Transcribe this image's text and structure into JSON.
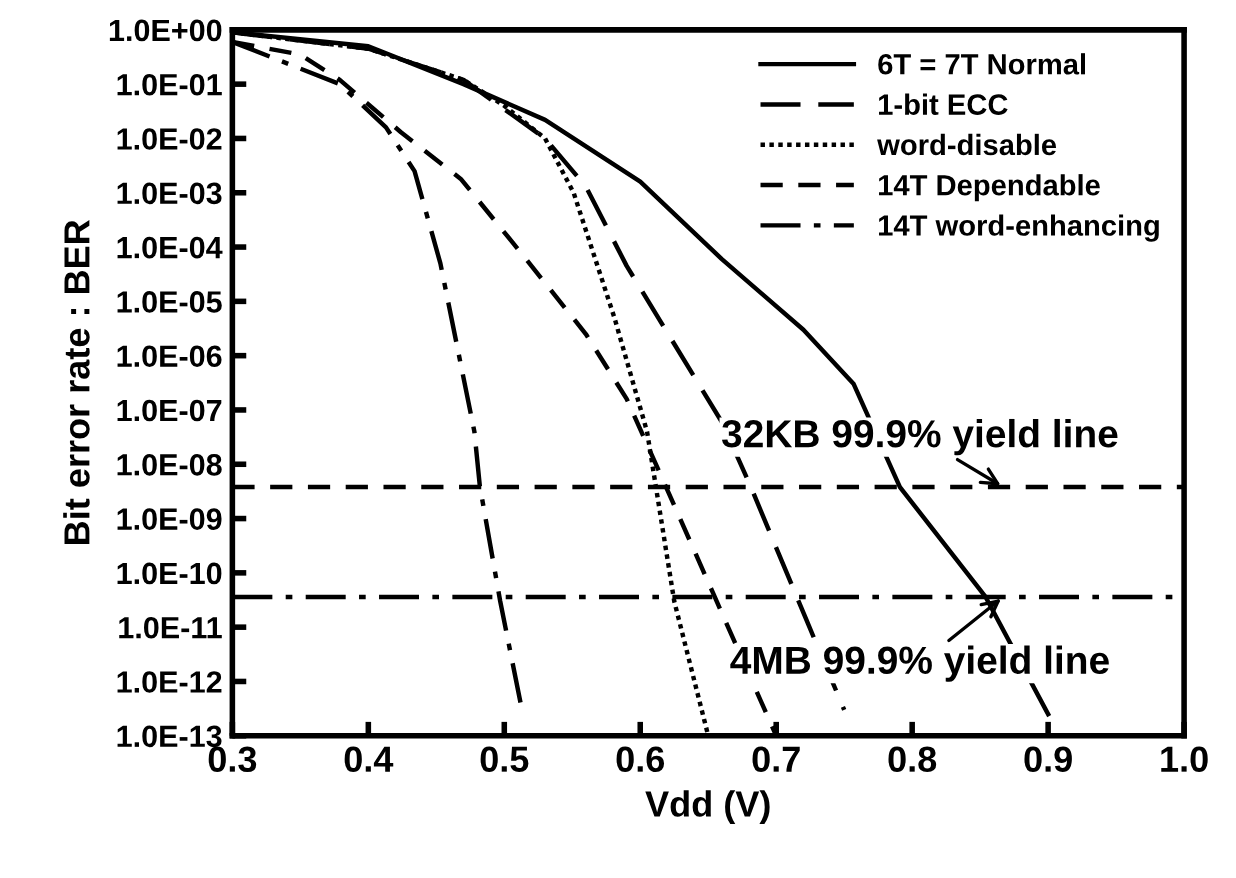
{
  "chart_data": {
    "type": "line",
    "xlabel": "Vdd (V)",
    "ylabel": "Bit error rate : BER",
    "log": "y",
    "xlim": [
      0.3,
      1.0
    ],
    "xticks": [
      {
        "value": 0.3,
        "label": "0.3"
      },
      {
        "value": 0.4,
        "label": "0.4"
      },
      {
        "value": 0.5,
        "label": "0.5"
      },
      {
        "value": 0.6,
        "label": "0.6"
      },
      {
        "value": 0.7,
        "label": "0.7"
      },
      {
        "value": 0.8,
        "label": "0.8"
      },
      {
        "value": 0.9,
        "label": "0.9"
      },
      {
        "value": 1.0,
        "label": "1.0"
      }
    ],
    "ylim": [
      1e-13,
      1
    ],
    "yticks": [
      {
        "value": 1,
        "label": "1.0E+00"
      },
      {
        "value": 0.1,
        "label": "1.0E-01"
      },
      {
        "value": 0.01,
        "label": "1.0E-02"
      },
      {
        "value": 0.001,
        "label": "1.0E-03"
      },
      {
        "value": 0.0001,
        "label": "1.0E-04"
      },
      {
        "value": 1e-05,
        "label": "1.0E-05"
      },
      {
        "value": 1e-06,
        "label": "1.0E-06"
      },
      {
        "value": 1e-07,
        "label": "1.0E-07"
      },
      {
        "value": 1e-08,
        "label": "1.0E-08"
      },
      {
        "value": 1e-09,
        "label": "1.0E-09"
      },
      {
        "value": 1e-10,
        "label": "1.0E-10"
      },
      {
        "value": 1e-11,
        "label": "1.0E-11"
      },
      {
        "value": 1e-12,
        "label": "1.0E-12"
      },
      {
        "value": 1e-13,
        "label": "1.0E-13"
      }
    ],
    "grid": false,
    "legend": "top right",
    "marker": "none",
    "series": [
      {
        "name": "6T = 7T Normal",
        "color": "#000000",
        "line_style": "solid",
        "x": [
          0.3,
          0.4,
          0.47,
          0.53,
          0.6,
          0.66,
          0.72,
          0.757,
          0.791,
          0.854,
          0.9
        ],
        "values": [
          0.9,
          0.5,
          0.1,
          0.022,
          0.0016,
          6e-05,
          3e-06,
          3e-07,
          3.8e-09,
          3.6e-11,
          2.5e-13
        ]
      },
      {
        "name": "1-bit ECC",
        "color": "#000000",
        "line_style": "longdash",
        "x": [
          0.3,
          0.4,
          0.47,
          0.53,
          0.56,
          0.59,
          0.66,
          0.681,
          0.722,
          0.75
        ],
        "values": [
          0.9,
          0.45,
          0.12,
          0.01,
          0.0013,
          4.5e-05,
          6e-08,
          4e-09,
          1.4e-11,
          3e-13
        ]
      },
      {
        "name": "word-disable",
        "color": "#000000",
        "line_style": "dotted",
        "x": [
          0.3,
          0.4,
          0.47,
          0.5,
          0.53,
          0.551,
          0.581,
          0.605,
          0.625,
          0.65
        ],
        "values": [
          0.9,
          0.45,
          0.12,
          0.04,
          0.01,
          0.001,
          5e-06,
          4e-08,
          3e-11,
          1e-13
        ]
      },
      {
        "name": "14T Dependable",
        "color": "#000000",
        "line_style": "dashed",
        "x": [
          0.3,
          0.35,
          0.379,
          0.424,
          0.468,
          0.512,
          0.56,
          0.59,
          0.619,
          0.654,
          0.7
        ],
        "values": [
          0.6,
          0.35,
          0.12,
          0.013,
          0.0018,
          8e-05,
          2.5e-06,
          1.6e-07,
          3.8e-09,
          4e-11,
          1e-13
        ]
      },
      {
        "name": "14T word-enhancing",
        "color": "#000000",
        "line_style": "dashdot",
        "x": [
          0.3,
          0.379,
          0.413,
          0.434,
          0.453,
          0.478,
          0.482,
          0.497,
          0.512
        ],
        "values": [
          0.6,
          0.1,
          0.016,
          0.0025,
          5e-05,
          4e-08,
          4e-09,
          3e-11,
          4e-13
        ]
      }
    ],
    "ref_lines": [
      {
        "axis": "y",
        "value": 3.8e-09,
        "label": "32KB 99.9% yield line",
        "color": "#000000",
        "line_style": "dashed"
      },
      {
        "axis": "y",
        "value": 3.6e-11,
        "label": "4MB 99.9% yield line",
        "color": "#000000",
        "line_style": "dashdot"
      }
    ]
  }
}
